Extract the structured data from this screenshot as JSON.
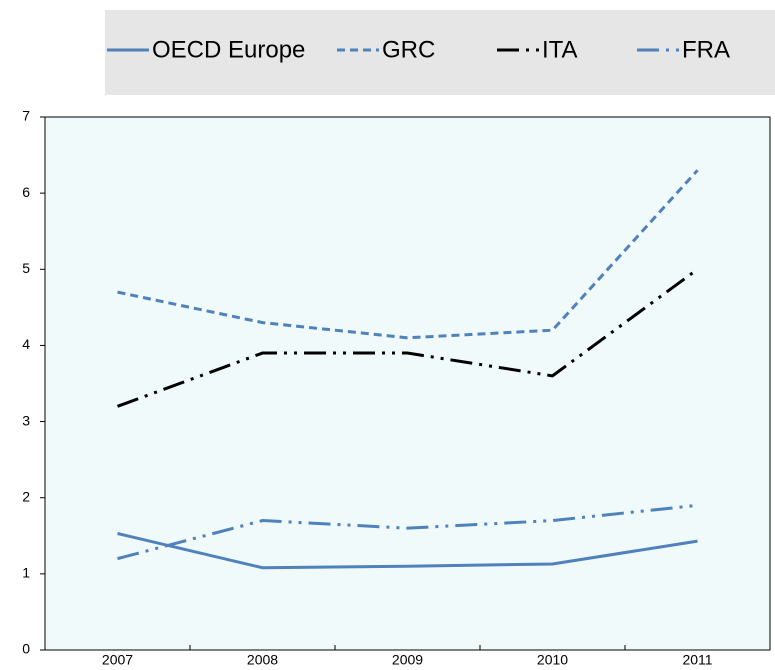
{
  "chart_data": {
    "type": "line",
    "categories": [
      "2007",
      "2008",
      "2009",
      "2010",
      "2011"
    ],
    "series": [
      {
        "name": "OECD Europe",
        "color": "#4f81bd",
        "style": "solid",
        "values": [
          1.53,
          1.08,
          1.1,
          1.13,
          1.43
        ]
      },
      {
        "name": "GRC",
        "color": "#4f81bd",
        "style": "dashed",
        "values": [
          4.7,
          4.3,
          4.1,
          4.2,
          6.3
        ]
      },
      {
        "name": "ITA",
        "color": "#000000",
        "style": "dashdotdot",
        "values": [
          3.2,
          3.9,
          3.9,
          3.6,
          5.0
        ]
      },
      {
        "name": "FRA",
        "color": "#4f81bd",
        "style": "dashdotdot",
        "values": [
          1.2,
          1.7,
          1.6,
          1.7,
          1.9
        ]
      }
    ],
    "ylim": [
      0,
      7
    ],
    "yticks": [
      0,
      1,
      2,
      3,
      4,
      5,
      6,
      7
    ],
    "legend": "top"
  }
}
